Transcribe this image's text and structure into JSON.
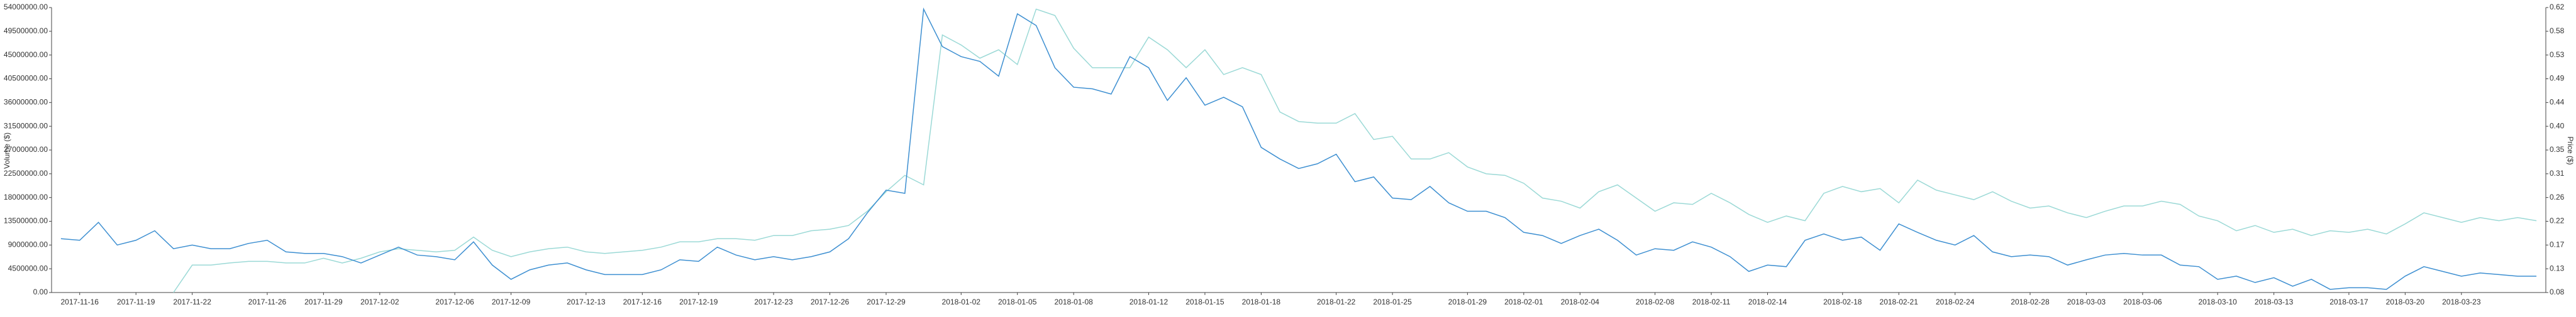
{
  "chart_data": {
    "type": "line",
    "y_label": "Volume ($)",
    "y2_label": "Price ($)",
    "categories": [
      null,
      "2017-11-16",
      null,
      null,
      "2017-11-19",
      null,
      null,
      "2017-11-22",
      null,
      null,
      null,
      "2017-11-26",
      null,
      null,
      "2017-11-29",
      null,
      null,
      "2017-12-02",
      null,
      null,
      null,
      "2017-12-06",
      null,
      null,
      "2017-12-09",
      null,
      null,
      null,
      "2017-12-13",
      null,
      null,
      "2017-12-16",
      null,
      null,
      "2017-12-19",
      null,
      null,
      null,
      "2017-12-23",
      null,
      null,
      "2017-12-26",
      null,
      null,
      "2017-12-29",
      null,
      null,
      null,
      "2018-01-02",
      null,
      null,
      "2018-01-05",
      null,
      null,
      "2018-01-08",
      null,
      null,
      null,
      "2018-01-12",
      null,
      null,
      "2018-01-15",
      null,
      null,
      "2018-01-18",
      null,
      null,
      null,
      "2018-01-22",
      null,
      null,
      "2018-01-25",
      null,
      null,
      null,
      "2018-01-29",
      null,
      null,
      "2018-02-01",
      null,
      null,
      "2018-02-04",
      null,
      null,
      null,
      "2018-02-08",
      null,
      null,
      "2018-02-11",
      null,
      null,
      "2018-02-14",
      null,
      null,
      null,
      "2018-02-18",
      null,
      null,
      "2018-02-21",
      null,
      null,
      "2018-02-24",
      null,
      null,
      null,
      "2018-02-28",
      null,
      null,
      "2018-03-03",
      null,
      null,
      "2018-03-06",
      null,
      null,
      null,
      "2018-03-10",
      null,
      null,
      "2018-03-13",
      null,
      null,
      null,
      "2018-03-17",
      null,
      null,
      "2018-03-20",
      null,
      null,
      "2018-03-23",
      null,
      null,
      null,
      null
    ],
    "series": [
      {
        "color": "#3d8fd1",
        "values": [
          10200000,
          9900000,
          13300000,
          9000000,
          9900000,
          11700000,
          8300000,
          9000000,
          8300000,
          8300000,
          9300000,
          9900000,
          7700000,
          7400000,
          7400000,
          6800000,
          5600000,
          7100000,
          8600000,
          7100000,
          6800000,
          6200000,
          9600000,
          5200000,
          2500000,
          4300000,
          5200000,
          5600000,
          4300000,
          3400000,
          3400000,
          3400000,
          4300000,
          6200000,
          5900000,
          8600000,
          7100000,
          6200000,
          6800000,
          6200000,
          6800000,
          7700000,
          10200000,
          15100000,
          19400000,
          18800000,
          53700000,
          46600000,
          44700000,
          43800000,
          41000000,
          52800000,
          50600000,
          42600000,
          38900000,
          38600000,
          37600000,
          44700000,
          42600000,
          36400000,
          40700000,
          35500000,
          37000000,
          35200000,
          27500000,
          25300000,
          23500000,
          24400000,
          26200000,
          21000000,
          21900000,
          17900000,
          17600000,
          20100000,
          17000000,
          15400000,
          15400000,
          14200000,
          11400000,
          10800000,
          9300000,
          10800000,
          12000000,
          9900000,
          7100000,
          8300000,
          8000000,
          9600000,
          8600000,
          6800000,
          4000000,
          5200000,
          4900000,
          9900000,
          11100000,
          9900000,
          10500000,
          8000000,
          13000000,
          11400000,
          9900000,
          9000000,
          10800000,
          7700000,
          6800000,
          7100000,
          6800000,
          5200000,
          6200000,
          7100000,
          7400000,
          7100000,
          7100000,
          5200000,
          4900000,
          2500000,
          3100000,
          1900000,
          2800000,
          1200000,
          2500000,
          600000,
          900000,
          900000,
          600000,
          3100000,
          4900000,
          4000000,
          3100000,
          3700000,
          3400000,
          3100000,
          3100000
        ]
      },
      {
        "color": "#9bd9d6",
        "axis": "y2",
        "values": [
          null,
          null,
          null,
          null,
          null,
          null,
          0.08,
          0.132,
          0.132,
          0.136,
          0.139,
          0.139,
          0.136,
          0.136,
          0.145,
          0.136,
          0.145,
          0.157,
          0.163,
          0.16,
          0.157,
          0.16,
          0.185,
          0.16,
          0.148,
          0.157,
          0.163,
          0.166,
          0.157,
          0.154,
          0.157,
          0.16,
          0.166,
          0.176,
          0.176,
          0.182,
          0.182,
          0.179,
          0.188,
          0.188,
          0.197,
          0.2,
          0.207,
          0.234,
          0.271,
          0.302,
          0.284,
          0.568,
          0.549,
          0.524,
          0.54,
          0.512,
          0.617,
          0.605,
          0.543,
          0.506,
          0.506,
          0.506,
          0.564,
          0.54,
          0.506,
          0.54,
          0.493,
          0.506,
          0.493,
          0.422,
          0.404,
          0.401,
          0.401,
          0.419,
          0.37,
          0.376,
          0.333,
          0.333,
          0.345,
          0.318,
          0.305,
          0.302,
          0.287,
          0.259,
          0.253,
          0.24,
          0.271,
          0.284,
          0.259,
          0.234,
          0.25,
          0.247,
          0.268,
          0.25,
          0.228,
          0.213,
          0.225,
          0.216,
          0.268,
          0.281,
          0.271,
          0.277,
          0.25,
          0.293,
          0.274,
          0.265,
          0.256,
          0.271,
          0.253,
          0.24,
          0.244,
          0.231,
          0.222,
          0.234,
          0.244,
          0.244,
          0.253,
          0.247,
          0.225,
          0.216,
          0.197,
          0.207,
          0.194,
          0.2,
          0.188,
          0.197,
          0.194,
          0.2,
          0.191,
          0.21,
          0.231,
          0.222,
          0.213,
          0.222,
          0.216,
          0.222,
          0.216
        ]
      }
    ],
    "ylim": [
      0,
      54000000
    ],
    "yticks": [
      {
        "value": 0,
        "label": "0.00"
      },
      {
        "value": 4500000,
        "label": "4500000.00"
      },
      {
        "value": 9000000,
        "label": "9000000.00"
      },
      {
        "value": 13500000,
        "label": "13500000.00"
      },
      {
        "value": 18000000,
        "label": "18000000.00"
      },
      {
        "value": 22500000,
        "label": "22500000.00"
      },
      {
        "value": 27000000,
        "label": "27000000.00"
      },
      {
        "value": 31500000,
        "label": "31500000.00"
      },
      {
        "value": 36000000,
        "label": "36000000.00"
      },
      {
        "value": 40500000,
        "label": "40500000.00"
      },
      {
        "value": 45000000,
        "label": "45000000.00"
      },
      {
        "value": 49500000,
        "label": "49500000.00"
      },
      {
        "value": 54000000,
        "label": "54000000.00"
      }
    ],
    "y2lim": [
      0.08,
      0.62
    ],
    "y2ticks": [
      0.08,
      {
        "value": 0.125,
        "label": "0.13"
      },
      0.17,
      {
        "value": 0.215,
        "label": "0.22"
      },
      0.26,
      {
        "value": 0.305,
        "label": "0.31"
      },
      0.35,
      {
        "value": 0.395,
        "label": "0.40"
      },
      0.44,
      {
        "value": 0.485,
        "label": "0.49"
      },
      0.53,
      {
        "value": 0.575,
        "label": "0.58"
      },
      0.62
    ],
    "grid": false
  }
}
